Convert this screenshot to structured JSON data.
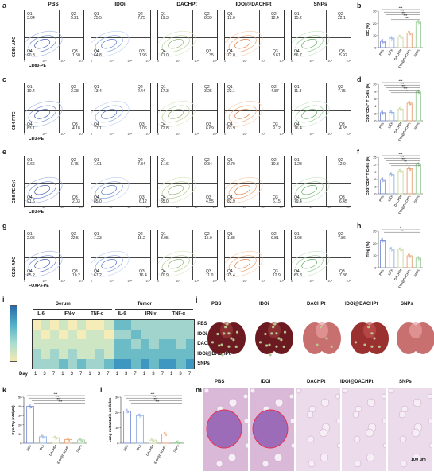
{
  "panel_labels": [
    "a",
    "b",
    "c",
    "d",
    "e",
    "f",
    "g",
    "h",
    "i",
    "j",
    "k",
    "l",
    "m"
  ],
  "groups": [
    "PBS",
    "IDOi",
    "DACHPt",
    "IDOi@DACHPt",
    "SNPs"
  ],
  "group_colors": [
    "#7a8fd8",
    "#8fb0e0",
    "#c8d8a0",
    "#e8a070",
    "#9fcf9f"
  ],
  "flow": [
    {
      "ylabel": "CD86-APC",
      "xlabel": "CD80-PE",
      "quads": [
        [
          "3.04",
          "5.21",
          "90.3",
          "1.50"
        ],
        [
          "25.5",
          "7.75",
          "64.8",
          "1.96"
        ],
        [
          "19.3",
          "8.39",
          "71.0",
          "1.35"
        ],
        [
          "12.0",
          "12.4",
          "72.0",
          "3.61"
        ],
        [
          "15.2",
          "22.1",
          "56.7",
          "5.92"
        ]
      ]
    },
    {
      "ylabel": "CD4-FITC",
      "xlabel": "CD3-PE",
      "quads": [
        [
          "10.4",
          "2.28",
          "83.1",
          "4.18"
        ],
        [
          "13.4",
          "2.44",
          "77.1",
          "7.06"
        ],
        [
          "17.3",
          "3.25",
          "72.8",
          "6.69"
        ],
        [
          "22.1",
          "4.87",
          "63.9",
          "9.12"
        ],
        [
          "11.3",
          "7.75",
          "76.4",
          "4.55"
        ]
      ]
    },
    {
      "ylabel": "CD8-PE-Cy7",
      "xlabel": "CD3-PE",
      "quads": [
        [
          "0.66",
          "5.75",
          "91.6",
          "2.03"
        ],
        [
          "1.01",
          "7.84",
          "85.0",
          "6.12"
        ],
        [
          "1.16",
          "9.34",
          "85.0",
          "4.55"
        ],
        [
          "0.70",
          "10.3",
          "82.9",
          "6.15"
        ],
        [
          "1.28",
          "12.0",
          "79.4",
          "6.45"
        ]
      ]
    },
    {
      "ylabel": "CD25-APC",
      "xlabel": "FOXP3-PE",
      "quads": [
        [
          "2.06",
          "22.5",
          "65.2",
          "10.2"
        ],
        [
          "1.23",
          "15.2",
          "67.2",
          "16.4"
        ],
        [
          "3.05",
          "15.0",
          "70.9",
          "11.0"
        ],
        [
          "1.88",
          "9.81",
          "75.4",
          "12.9"
        ],
        [
          "1.03",
          "7.86",
          "83.8",
          "7.36"
        ]
      ]
    }
  ],
  "quad_names": [
    "Q1",
    "Q2",
    "Q4",
    "Q3"
  ],
  "chart_data": [
    {
      "type": "bar",
      "panel": "b",
      "categories": [
        "PBS",
        "IDOi",
        "DACHPt",
        "IDOi@DACHPt",
        "SNPs"
      ],
      "values": [
        5.2,
        7.8,
        9.0,
        12.1,
        21.0
      ],
      "ylabel": "DC (%)",
      "ylim": [
        0,
        30
      ],
      "yticks": [
        "0",
        "10",
        "20",
        "30"
      ],
      "sig": [
        "***",
        "***",
        "***",
        "***",
        "**"
      ]
    },
    {
      "type": "bar",
      "panel": "d",
      "categories": [
        "PBS",
        "IDOi",
        "DACHPt",
        "IDOi@DACHPt",
        "SNPs"
      ],
      "values": [
        2.2,
        2.3,
        3.2,
        4.8,
        7.9
      ],
      "ylabel": "CD3⁺CD4⁺ T Cells (%)",
      "ylim": [
        0,
        10
      ],
      "yticks": [
        "0",
        "2",
        "4",
        "6",
        "8",
        "10"
      ],
      "sig": [
        "***",
        "***",
        "***",
        "***",
        "**"
      ]
    },
    {
      "type": "bar",
      "panel": "f",
      "categories": [
        "PBS",
        "IDOi",
        "DACHPt",
        "IDOi@DACHPt",
        "SNPs"
      ],
      "values": [
        5.8,
        7.9,
        9.4,
        10.3,
        12.1
      ],
      "ylabel": "CD3⁺CD8⁺ T Cells (%)",
      "ylim": [
        0,
        15
      ],
      "yticks": [
        "0",
        "3",
        "6",
        "9",
        "12",
        "15"
      ],
      "sig": [
        "***",
        "***",
        "***",
        "**",
        "**"
      ]
    },
    {
      "type": "bar",
      "panel": "h",
      "categories": [
        "PBS",
        "IDOi",
        "DACHPt",
        "IDOi@DACHPt",
        "SNPs"
      ],
      "values": [
        22.5,
        15.2,
        15.0,
        9.8,
        7.9
      ],
      "ylabel": "Treg (%)",
      "ylim": [
        0,
        30
      ],
      "yticks": [
        "0",
        "10",
        "20",
        "30"
      ],
      "sig": [
        "*",
        "**"
      ]
    },
    {
      "type": "bar",
      "panel": "k",
      "categories": [
        "PBS",
        "IDOi",
        "DACHPt",
        "IDOi@DACHPt",
        "SNPs"
      ],
      "values": [
        40,
        7,
        6,
        4,
        3.5
      ],
      "ylabel": "Kyn/Try (nM/µM)",
      "ylim": [
        0,
        50
      ],
      "yticks": [
        "0",
        "10",
        "20",
        "30",
        "40",
        "50"
      ],
      "sig": [
        "***",
        "***",
        "***",
        "***"
      ]
    },
    {
      "type": "bar",
      "panel": "l",
      "categories": [
        "PBS",
        "IDOi",
        "DACHPt",
        "IDOi@DACHPt",
        "SNPs"
      ],
      "values": [
        21,
        18,
        2,
        6,
        0.5
      ],
      "ylabel": "Lung metastatic nodules",
      "ylim": [
        0,
        30
      ],
      "yticks": [
        "0",
        "10",
        "20",
        "30"
      ],
      "sig": [
        "***",
        "***",
        "***",
        "***"
      ]
    },
    {
      "type": "heatmap",
      "panel": "i",
      "col_groups": [
        {
          "name": "Serum",
          "cytokines": [
            "IL-6",
            "IFN-γ",
            "TNF-α"
          ]
        },
        {
          "name": "Tumor",
          "cytokines": [
            "IL-6",
            "IFN-γ",
            "TNF-α"
          ]
        }
      ],
      "days": [
        "1",
        "3",
        "7"
      ],
      "day_label": "Day",
      "rows": [
        "PBS",
        "IDOi",
        "DACHPt",
        "IDOi@DACHPt",
        "SNPs"
      ]
    }
  ],
  "tick_labels": [
    "0",
    "10³",
    "10⁴",
    "10⁵"
  ],
  "scale_bar": "100 µm"
}
